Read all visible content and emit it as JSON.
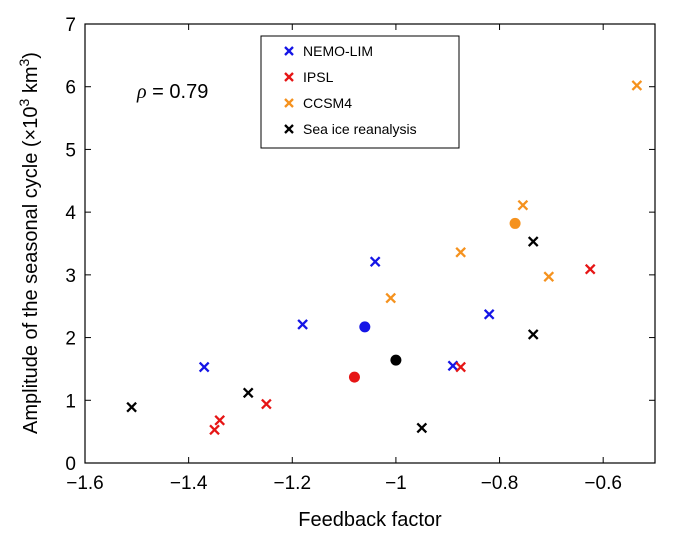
{
  "chart_data": {
    "type": "scatter",
    "xlabel": "Feedback factor",
    "ylabel_main": "Amplitude of the seasonal cycle (×10",
    "ylabel_exp1": "3",
    "ylabel_unit": " km",
    "ylabel_exp2": "3",
    "ylabel_close": ")",
    "xlim": [
      -1.6,
      -0.5
    ],
    "ylim": [
      0,
      7
    ],
    "xticks": [
      -1.6,
      -1.4,
      -1.2,
      -1,
      -0.8,
      -0.6
    ],
    "xtick_labels": [
      "−1.6",
      "−1.4",
      "−1.2",
      "−1",
      "−0.8",
      "−0.6"
    ],
    "yticks": [
      0,
      1,
      2,
      3,
      4,
      5,
      6,
      7
    ],
    "ytick_labels": [
      "0",
      "1",
      "2",
      "3",
      "4",
      "5",
      "6",
      "7"
    ],
    "annotation": {
      "symbol": "ρ",
      "text": " = 0.79"
    },
    "legend_position": "top-center",
    "series": [
      {
        "name": "NEMO-LIM",
        "color": "#1515e6",
        "points": [
          [
            -1.37,
            1.53
          ],
          [
            -1.18,
            2.21
          ],
          [
            -1.04,
            3.21
          ],
          [
            -0.89,
            1.55
          ],
          [
            -0.82,
            2.37
          ]
        ],
        "mean": [
          -1.06,
          2.17
        ]
      },
      {
        "name": "IPSL",
        "color": "#e61515",
        "points": [
          [
            -1.35,
            0.53
          ],
          [
            -1.34,
            0.68
          ],
          [
            -1.25,
            0.94
          ],
          [
            -0.875,
            1.53
          ],
          [
            -0.625,
            3.09
          ]
        ],
        "mean": [
          -1.08,
          1.37
        ]
      },
      {
        "name": "CCSM4",
        "color": "#f5921e",
        "points": [
          [
            -1.01,
            2.63
          ],
          [
            -0.875,
            3.36
          ],
          [
            -0.755,
            4.11
          ],
          [
            -0.705,
            2.97
          ],
          [
            -0.535,
            6.02
          ]
        ],
        "mean": [
          -0.77,
          3.82
        ]
      },
      {
        "name": "Sea ice reanalysis",
        "color": "#000000",
        "points": [
          [
            -1.51,
            0.89
          ],
          [
            -1.285,
            1.12
          ],
          [
            -0.95,
            0.56
          ],
          [
            -0.735,
            3.53
          ],
          [
            -0.735,
            2.05
          ]
        ],
        "mean": [
          -1.0,
          1.64
        ]
      }
    ]
  }
}
